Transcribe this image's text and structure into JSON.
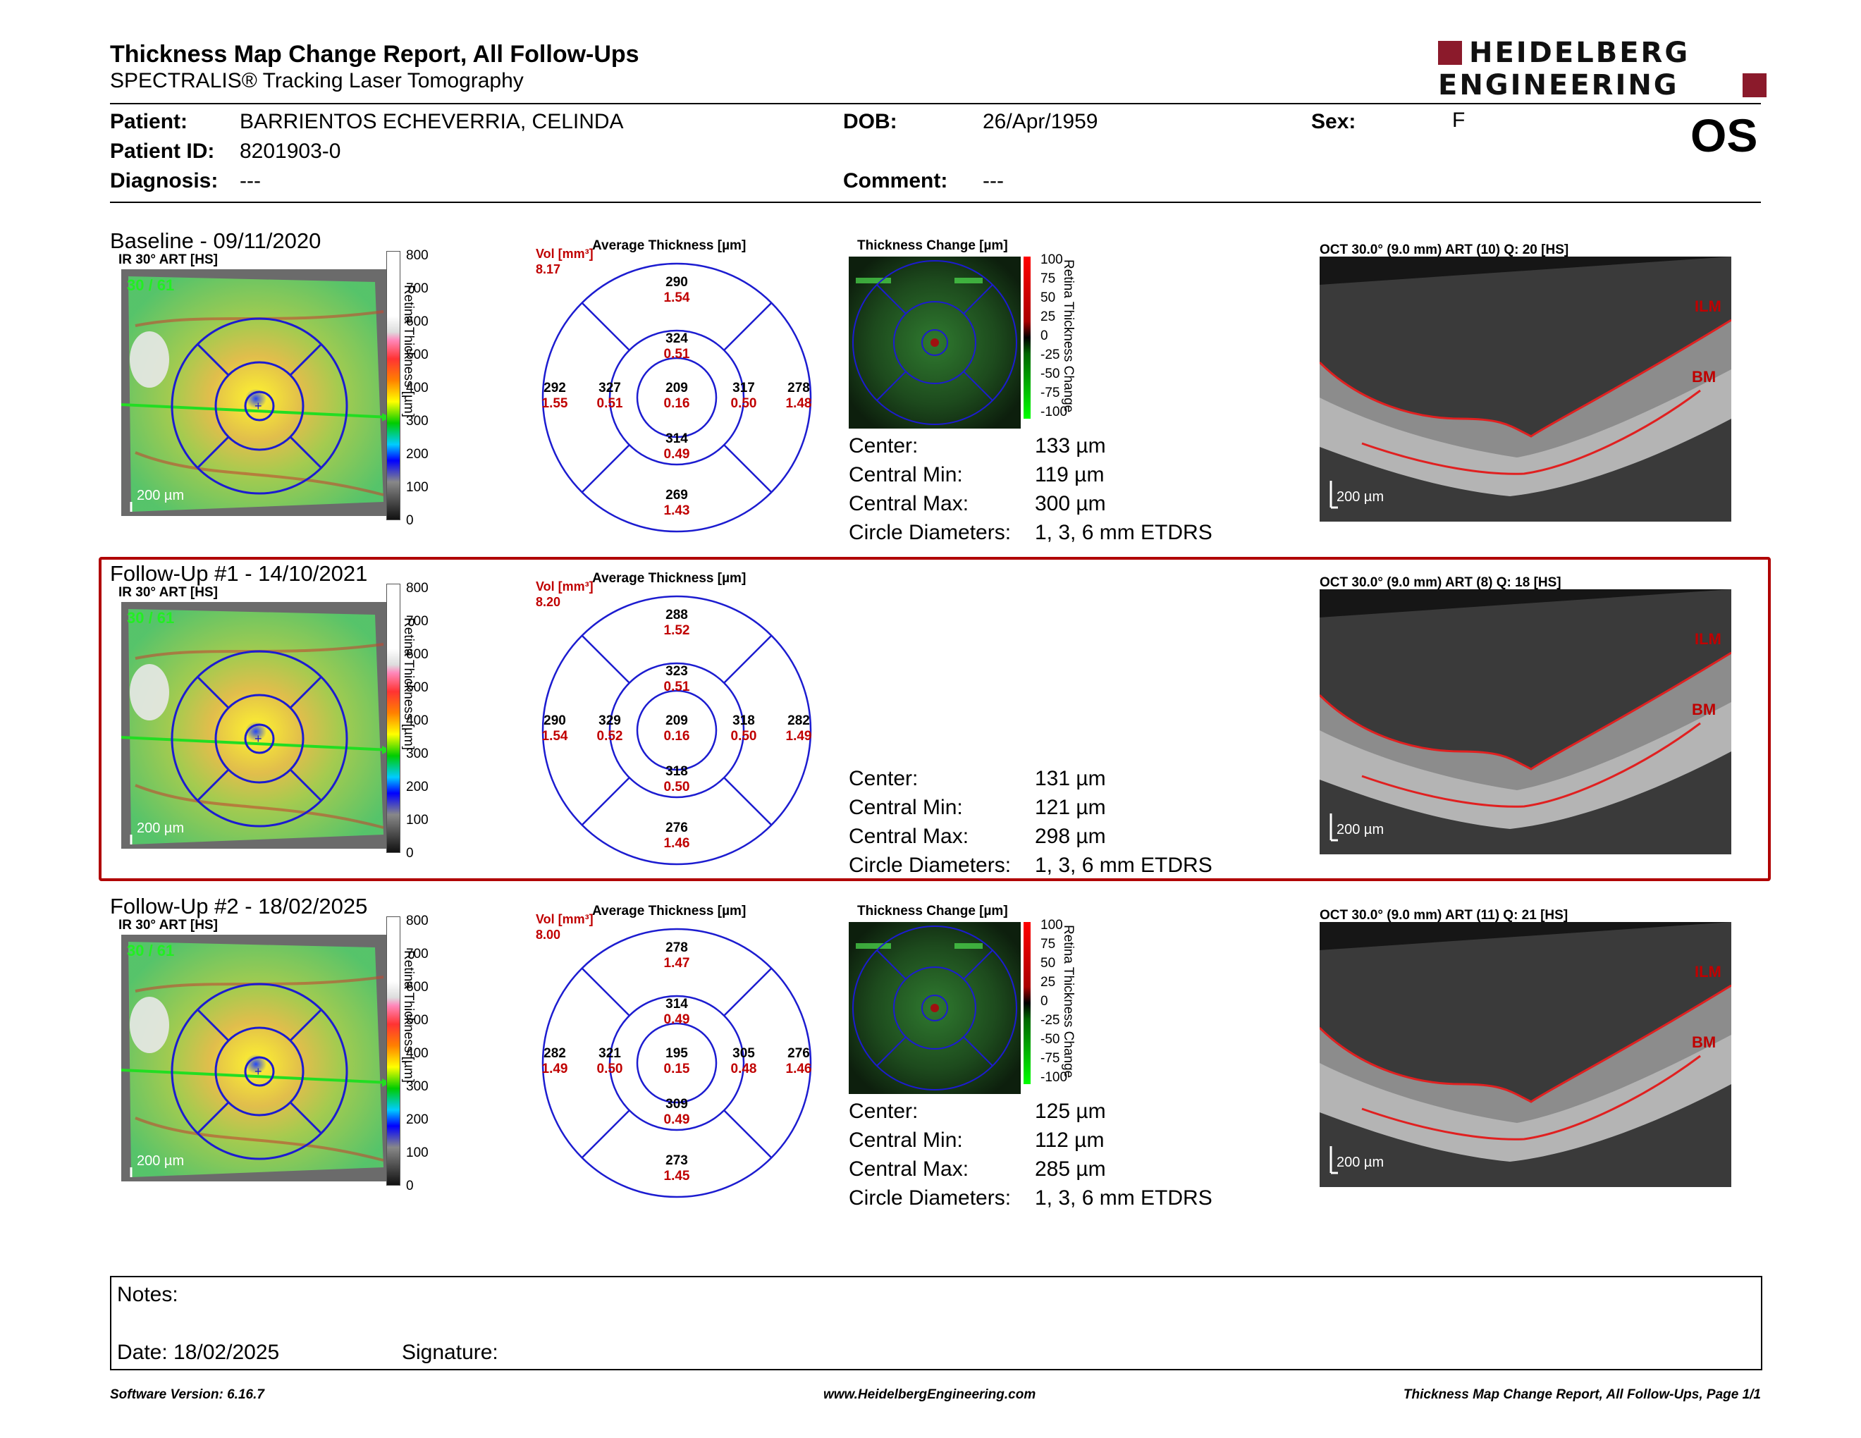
{
  "report": {
    "title": "Thickness Map Change Report, All Follow-Ups",
    "subtitle": "SPECTRALIS® Tracking Laser Tomography",
    "logo_line1": "HEIDELBERG",
    "logo_line2": "ENGINEERING",
    "logo_color": "#8b1a2b"
  },
  "patient": {
    "name_label": "Patient:",
    "name": "BARRIENTOS ECHEVERRIA, CELINDA",
    "id_label": "Patient ID:",
    "id": "8201903-0",
    "diagnosis_label": "Diagnosis:",
    "diagnosis": "---",
    "dob_label": "DOB:",
    "dob": "26/Apr/1959",
    "comment_label": "Comment:",
    "comment": "---",
    "sex_label": "Sex:",
    "sex": "F",
    "eye": "OS"
  },
  "common": {
    "ir_label": "IR 30° ART [HS]",
    "colorbar_ticks": [
      "800",
      "700",
      "600",
      "500",
      "400",
      "300",
      "200",
      "100",
      "0"
    ],
    "colorbar_title": "Retina Thickness [µm]",
    "scale_bar": "200 µm",
    "avg_title": "Average Thickness [µm]",
    "vol_label": "Vol [mm³]",
    "tc_title": "Thickness Change [µm]",
    "tc_ticks": [
      "100",
      "75",
      "50",
      "25",
      "0",
      "-25",
      "-50",
      "-75",
      "-100"
    ],
    "tc_vertical": "Retina Thickness Change",
    "ilm": "ILM",
    "bm": "BM",
    "center_label": "Center:",
    "min_label": "Central Min:",
    "max_label": "Central Max:",
    "diam_label": "Circle Diameters:",
    "diam_value": "1, 3, 6 mm ETDRS"
  },
  "exams": [
    {
      "title": "Baseline - 09/11/2020",
      "track": "30 / 61",
      "vol": "8.17",
      "oct_label": "OCT 30.0° (9.0 mm) ART (10) Q: 20 [HS]",
      "has_change": true,
      "center": "133 µm",
      "cmin": "119 µm",
      "cmax": "300 µm",
      "sectors": {
        "c": [
          "209",
          "0.16"
        ],
        "is": [
          "324",
          "0.51"
        ],
        "it": [
          "317",
          "0.50"
        ],
        "ii": [
          "314",
          "0.49"
        ],
        "in": [
          "327",
          "0.51"
        ],
        "os": [
          "290",
          "1.54"
        ],
        "ot": [
          "278",
          "1.48"
        ],
        "oi": [
          "269",
          "1.43"
        ],
        "on": [
          "292",
          "1.55"
        ]
      }
    },
    {
      "title": "Follow-Up #1 - 14/10/2021",
      "track": "30 / 61",
      "vol": "8.20",
      "oct_label": "OCT 30.0° (9.0 mm) ART (8) Q: 18 [HS]",
      "has_change": false,
      "center": "131 µm",
      "cmin": "121 µm",
      "cmax": "298 µm",
      "sectors": {
        "c": [
          "209",
          "0.16"
        ],
        "is": [
          "323",
          "0.51"
        ],
        "it": [
          "318",
          "0.50"
        ],
        "ii": [
          "318",
          "0.50"
        ],
        "in": [
          "329",
          "0.52"
        ],
        "os": [
          "288",
          "1.52"
        ],
        "ot": [
          "282",
          "1.49"
        ],
        "oi": [
          "276",
          "1.46"
        ],
        "on": [
          "290",
          "1.54"
        ]
      }
    },
    {
      "title": "Follow-Up #2 - 18/02/2025",
      "track": "30 / 61",
      "vol": "8.00",
      "oct_label": "OCT 30.0° (9.0 mm) ART (11) Q: 21 [HS]",
      "has_change": true,
      "center": "125 µm",
      "cmin": "112 µm",
      "cmax": "285 µm",
      "sectors": {
        "c": [
          "195",
          "0.15"
        ],
        "is": [
          "314",
          "0.49"
        ],
        "it": [
          "305",
          "0.48"
        ],
        "ii": [
          "309",
          "0.49"
        ],
        "in": [
          "321",
          "0.50"
        ],
        "os": [
          "278",
          "1.47"
        ],
        "ot": [
          "276",
          "1.46"
        ],
        "oi": [
          "273",
          "1.45"
        ],
        "on": [
          "282",
          "1.49"
        ]
      }
    }
  ],
  "notes": {
    "notes_label": "Notes:",
    "date_label": "Date: 18/02/2025",
    "signature_label": "Signature:"
  },
  "footer": {
    "left": "Software Version: 6.16.7",
    "center": "www.HeidelbergEngineering.com",
    "right": "Thickness Map Change Report, All Follow-Ups, Page 1/1"
  }
}
